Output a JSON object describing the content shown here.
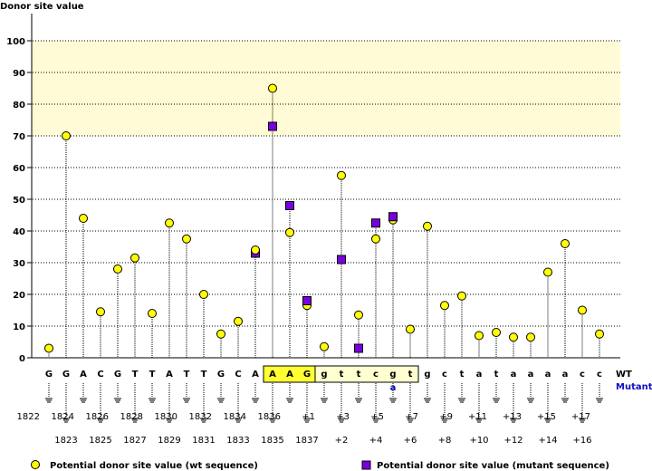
{
  "chart_data": {
    "type": "scatter",
    "title": "",
    "ylabel": "Donor site value",
    "ylim": [
      0,
      100
    ],
    "yticks": [
      0,
      10,
      20,
      30,
      40,
      50,
      60,
      70,
      80,
      90,
      100
    ],
    "highlight_range": [
      70,
      100
    ],
    "grid": true,
    "sequence_wt": [
      "G",
      "G",
      "A",
      "C",
      "G",
      "T",
      "T",
      "A",
      "T",
      "T",
      "G",
      "C",
      "A",
      "A",
      "A",
      "G",
      "g",
      "t",
      "t",
      "c",
      "g",
      "t",
      "g",
      "c",
      "t",
      "a",
      "t",
      "a",
      "a",
      "a",
      "a",
      "c",
      "c"
    ],
    "sequence_mutant": [
      null,
      null,
      null,
      null,
      null,
      null,
      null,
      null,
      null,
      null,
      null,
      null,
      null,
      null,
      null,
      null,
      null,
      null,
      null,
      null,
      "a",
      null,
      null,
      null,
      null,
      null,
      null,
      null,
      null,
      null,
      null,
      null,
      null
    ],
    "positions": [
      "1822",
      "1823",
      "1824",
      "1825",
      "1826",
      "1827",
      "1828",
      "1829",
      "1830",
      "1831",
      "1832",
      "1833",
      "1834",
      "1835",
      "1836",
      "1837",
      "+1",
      "+2",
      "+3",
      "+4",
      "+5",
      "+6",
      "+7",
      "+8",
      "+9",
      "+10",
      "+11",
      "+12",
      "+13",
      "+14",
      "+15",
      "+16",
      "+17"
    ],
    "exon_box": [
      13,
      15
    ],
    "intron_box": [
      16,
      21
    ],
    "row_labels": {
      "wt": "WT",
      "mutant": "Mutant"
    },
    "series": [
      {
        "name": "Potential donor site value (wt sequence)",
        "color": "#ffff00",
        "values": [
          3,
          70,
          44,
          14.5,
          28,
          31.5,
          14,
          42.5,
          37.5,
          20,
          7.5,
          11.5,
          34,
          85,
          39.5,
          16.5,
          3.5,
          57.5,
          13.5,
          37.5,
          43.5,
          9,
          41.5,
          16.5,
          19.5,
          7,
          8,
          6.5,
          6.5,
          27,
          36,
          15,
          7.5
        ]
      },
      {
        "name": "Potential donor site value (mutant sequence)",
        "color": "#7a00e0",
        "values": [
          null,
          null,
          null,
          null,
          null,
          null,
          null,
          null,
          null,
          null,
          null,
          null,
          33,
          73,
          48,
          18,
          null,
          31,
          3,
          42.5,
          44.5,
          null,
          null,
          null,
          null,
          null,
          null,
          null,
          null,
          null,
          null,
          null,
          null
        ]
      }
    ]
  }
}
